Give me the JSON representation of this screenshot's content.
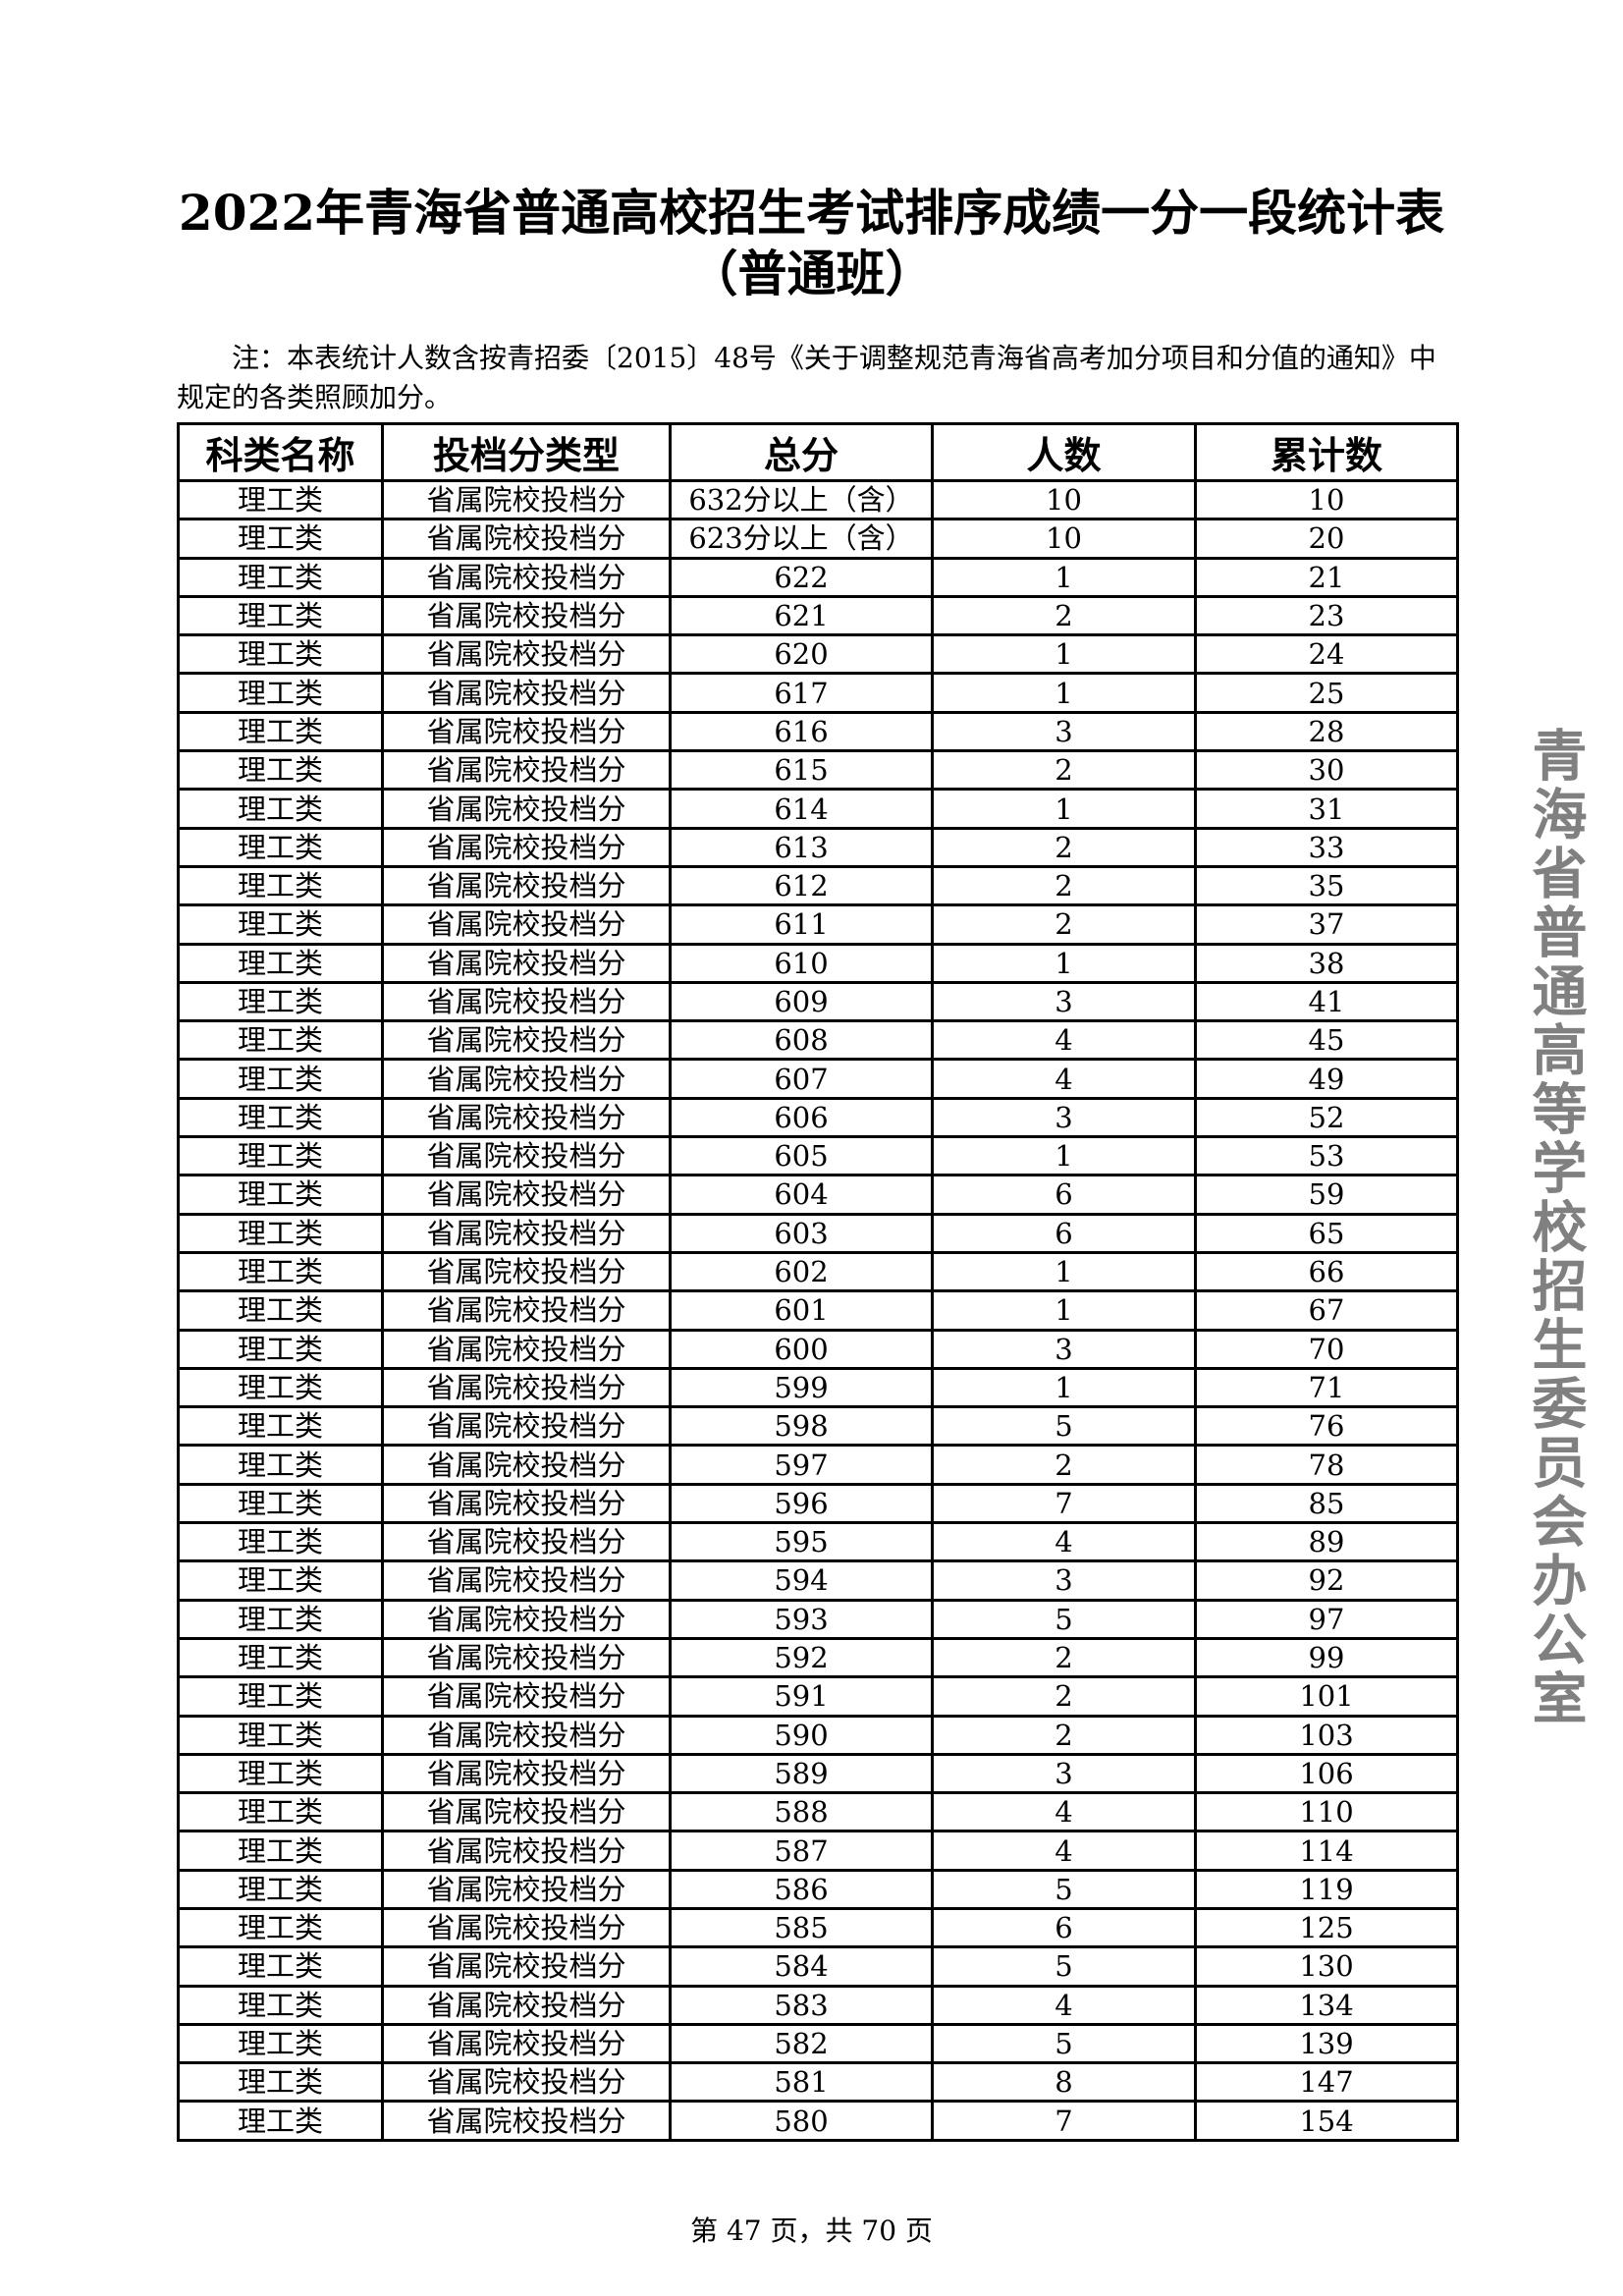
{
  "title": "2022年青海省普通高校招生考试排序成绩一分一段统计表",
  "subtitle": "（普通班）",
  "note": "注：本表统计人数含按青招委〔2015〕48号《关于调整规范青海省高考加分项目和分值的通知》中规定的各类照顾加分。",
  "table": {
    "headers": [
      "科类名称",
      "投档分类型",
      "总分",
      "人数",
      "累计数"
    ],
    "category": "理工类",
    "type": "省属院校投档分",
    "rows": [
      [
        "632分以上（含）",
        "10",
        "10"
      ],
      [
        "623分以上（含）",
        "10",
        "20"
      ],
      [
        "622",
        "1",
        "21"
      ],
      [
        "621",
        "2",
        "23"
      ],
      [
        "620",
        "1",
        "24"
      ],
      [
        "617",
        "1",
        "25"
      ],
      [
        "616",
        "3",
        "28"
      ],
      [
        "615",
        "2",
        "30"
      ],
      [
        "614",
        "1",
        "31"
      ],
      [
        "613",
        "2",
        "33"
      ],
      [
        "612",
        "2",
        "35"
      ],
      [
        "611",
        "2",
        "37"
      ],
      [
        "610",
        "1",
        "38"
      ],
      [
        "609",
        "3",
        "41"
      ],
      [
        "608",
        "4",
        "45"
      ],
      [
        "607",
        "4",
        "49"
      ],
      [
        "606",
        "3",
        "52"
      ],
      [
        "605",
        "1",
        "53"
      ],
      [
        "604",
        "6",
        "59"
      ],
      [
        "603",
        "6",
        "65"
      ],
      [
        "602",
        "1",
        "66"
      ],
      [
        "601",
        "1",
        "67"
      ],
      [
        "600",
        "3",
        "70"
      ],
      [
        "599",
        "1",
        "71"
      ],
      [
        "598",
        "5",
        "76"
      ],
      [
        "597",
        "2",
        "78"
      ],
      [
        "596",
        "7",
        "85"
      ],
      [
        "595",
        "4",
        "89"
      ],
      [
        "594",
        "3",
        "92"
      ],
      [
        "593",
        "5",
        "97"
      ],
      [
        "592",
        "2",
        "99"
      ],
      [
        "591",
        "2",
        "101"
      ],
      [
        "590",
        "2",
        "103"
      ],
      [
        "589",
        "3",
        "106"
      ],
      [
        "588",
        "4",
        "110"
      ],
      [
        "587",
        "4",
        "114"
      ],
      [
        "586",
        "5",
        "119"
      ],
      [
        "585",
        "6",
        "125"
      ],
      [
        "584",
        "5",
        "130"
      ],
      [
        "583",
        "4",
        "134"
      ],
      [
        "582",
        "5",
        "139"
      ],
      [
        "581",
        "8",
        "147"
      ],
      [
        "580",
        "7",
        "154"
      ]
    ]
  },
  "watermark": "青海省普通高等学校招生委员会办公室",
  "footer": "第 47 页，共 70 页"
}
